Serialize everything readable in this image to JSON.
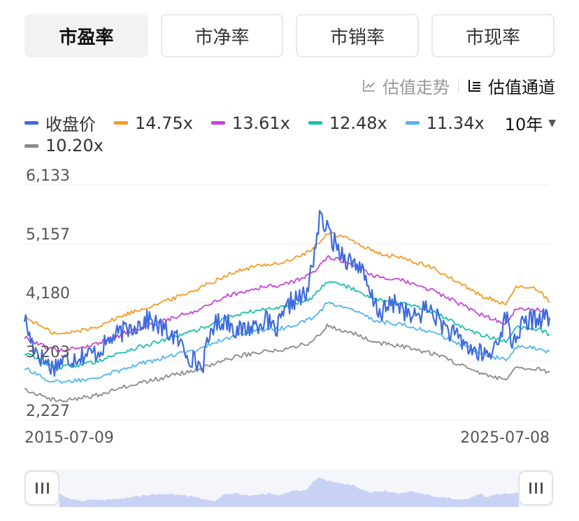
{
  "tabs": [
    {
      "label": "市盈率",
      "active": true
    },
    {
      "label": "市净率",
      "active": false
    },
    {
      "label": "市销率",
      "active": false
    },
    {
      "label": "市现率",
      "active": false
    }
  ],
  "view_toggle": {
    "trend_label": "估值走势",
    "channel_label": "估值通道",
    "selected": "估值通道"
  },
  "period": {
    "label": "10年",
    "icon": "caret-down-icon"
  },
  "colors": {
    "close": "#3f6bdf",
    "b1": "#f59a23",
    "b2": "#c347d6",
    "b3": "#1fbfb0",
    "b4": "#54b4f0",
    "b5": "#8a8a8a",
    "navigator_fill": "#c8d2f5"
  },
  "chart_data": {
    "type": "line",
    "y_ticks": [
      "6,133",
      "5,157",
      "4,180",
      "3,203",
      "2,227"
    ],
    "x_labels": [
      "2015-07-09",
      "2025-07-08"
    ],
    "ylim": [
      2227,
      6133
    ],
    "xlim": [
      2015.52,
      2025.52
    ],
    "grid": true,
    "legend_position": "top",
    "series": [
      {
        "name": "收盘价",
        "color_key": "close",
        "x": [
          2015.52,
          2015.62,
          2015.8,
          2016.05,
          2016.2,
          2016.6,
          2016.9,
          2017.2,
          2017.5,
          2017.9,
          2018.05,
          2018.4,
          2018.65,
          2018.9,
          2019.1,
          2019.35,
          2019.6,
          2019.9,
          2020.1,
          2020.3,
          2020.6,
          2020.9,
          2021.15,
          2021.4,
          2021.65,
          2021.9,
          2022.1,
          2022.3,
          2022.6,
          2022.9,
          2023.2,
          2023.6,
          2023.9,
          2024.1,
          2024.4,
          2024.7,
          2024.8,
          2025.0,
          2025.2,
          2025.52
        ],
        "values": [
          3950,
          3600,
          3300,
          3100,
          3200,
          3300,
          3350,
          3600,
          3750,
          3900,
          3800,
          3600,
          3300,
          3100,
          3800,
          3900,
          3700,
          3800,
          3900,
          3700,
          4200,
          4300,
          5600,
          5200,
          4900,
          4800,
          4300,
          4000,
          4200,
          3900,
          4100,
          3700,
          3500,
          3350,
          3300,
          3950,
          3500,
          3800,
          3900,
          3950
        ]
      },
      {
        "name": "14.75x",
        "color_key": "b1",
        "x": [
          2015.52,
          2016.0,
          2016.2,
          2016.8,
          2017.5,
          2018.2,
          2018.8,
          2019.4,
          2020.0,
          2020.5,
          2021.0,
          2021.3,
          2021.8,
          2022.2,
          2022.8,
          2023.3,
          2023.8,
          2024.2,
          2024.7,
          2024.9,
          2025.3,
          2025.52
        ],
        "values": [
          3950,
          3700,
          3650,
          3750,
          4000,
          4200,
          4400,
          4650,
          4800,
          4850,
          5050,
          5350,
          5200,
          5000,
          4900,
          4750,
          4500,
          4300,
          4150,
          4450,
          4400,
          4200
        ]
      },
      {
        "name": "13.61x",
        "color_key": "b2",
        "x": [
          2015.52,
          2016.0,
          2016.2,
          2016.8,
          2017.5,
          2018.2,
          2018.8,
          2019.4,
          2020.0,
          2020.5,
          2021.0,
          2021.3,
          2021.8,
          2022.2,
          2022.8,
          2023.3,
          2023.8,
          2024.2,
          2024.7,
          2024.9,
          2025.3,
          2025.52
        ],
        "values": [
          3600,
          3420,
          3380,
          3470,
          3700,
          3880,
          4050,
          4300,
          4430,
          4480,
          4660,
          4950,
          4800,
          4620,
          4520,
          4380,
          4160,
          3980,
          3830,
          4100,
          4060,
          3950
        ]
      },
      {
        "name": "12.48x",
        "color_key": "b3",
        "x": [
          2015.52,
          2016.0,
          2016.2,
          2016.8,
          2017.5,
          2018.2,
          2018.8,
          2019.4,
          2020.0,
          2020.5,
          2021.0,
          2021.3,
          2021.8,
          2022.2,
          2022.8,
          2023.3,
          2023.8,
          2024.2,
          2024.7,
          2024.9,
          2025.3,
          2025.52
        ],
        "values": [
          3350,
          3140,
          3100,
          3180,
          3390,
          3560,
          3720,
          3940,
          4060,
          4110,
          4270,
          4550,
          4400,
          4240,
          4150,
          4020,
          3810,
          3650,
          3520,
          3770,
          3730,
          3650
        ]
      },
      {
        "name": "11.34x",
        "color_key": "b4",
        "x": [
          2015.52,
          2016.0,
          2016.2,
          2016.8,
          2017.5,
          2018.2,
          2018.8,
          2019.4,
          2020.0,
          2020.5,
          2021.0,
          2021.3,
          2021.8,
          2022.2,
          2022.8,
          2023.3,
          2023.8,
          2024.2,
          2024.7,
          2024.9,
          2025.3,
          2025.52
        ],
        "values": [
          3100,
          2880,
          2850,
          2920,
          3110,
          3270,
          3400,
          3600,
          3720,
          3760,
          3910,
          4180,
          4040,
          3880,
          3800,
          3680,
          3490,
          3340,
          3220,
          3450,
          3420,
          3350
        ]
      },
      {
        "name": "10.20x",
        "color_key": "b5",
        "x": [
          2015.52,
          2016.0,
          2016.2,
          2016.8,
          2017.5,
          2018.2,
          2018.8,
          2019.4,
          2020.0,
          2020.5,
          2021.0,
          2021.3,
          2021.8,
          2022.2,
          2022.8,
          2023.3,
          2023.8,
          2024.2,
          2024.7,
          2024.9,
          2025.3,
          2025.52
        ],
        "values": [
          2750,
          2580,
          2550,
          2620,
          2800,
          2940,
          3060,
          3250,
          3360,
          3400,
          3530,
          3800,
          3660,
          3520,
          3440,
          3330,
          3160,
          3020,
          2900,
          3110,
          3080,
          3000
        ]
      }
    ]
  }
}
